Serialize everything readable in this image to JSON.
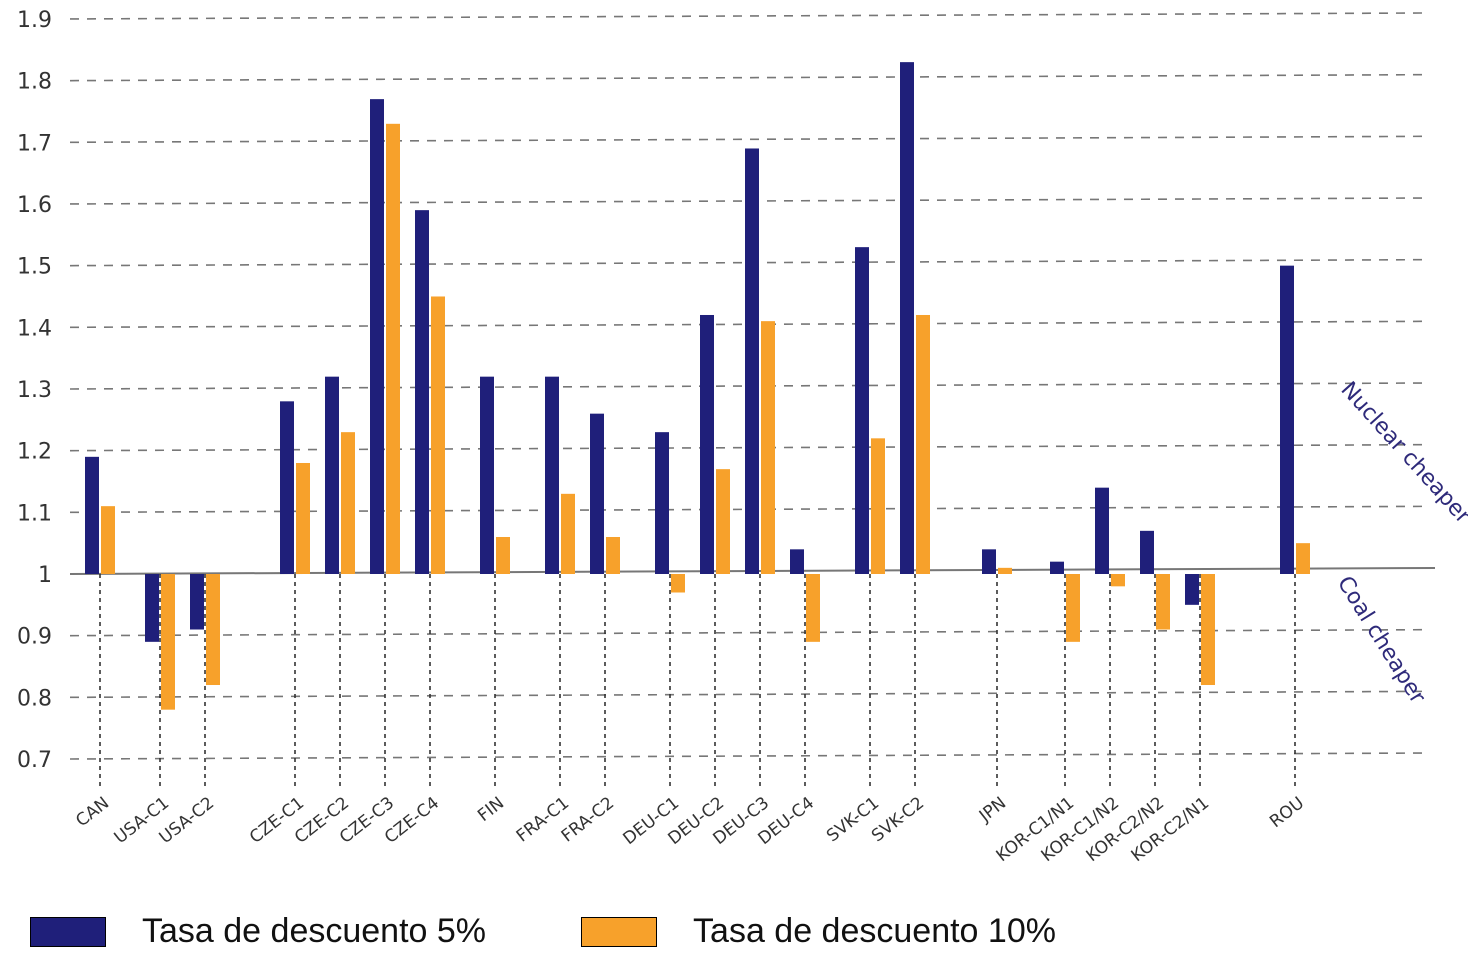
{
  "chart_data": {
    "type": "bar",
    "categories": [
      "CAN",
      "USA-C1",
      "USA-C2",
      "CZE-C1",
      "CZE-C2",
      "CZE-C3",
      "CZE-C4",
      "FIN",
      "FRA-C1",
      "FRA-C2",
      "DEU-C1",
      "DEU-C2",
      "DEU-C3",
      "DEU-C4",
      "SVK-C1",
      "SVK-C2",
      "JPN",
      "KOR-C1/N1",
      "KOR-C1/N2",
      "KOR-C2/N2",
      "KOR-C2/N1",
      "ROU"
    ],
    "series": [
      {
        "name": "Tasa de descuento 5%",
        "color": "#1f1f7a",
        "values": [
          1.19,
          0.89,
          0.91,
          1.28,
          1.32,
          1.77,
          1.59,
          1.32,
          1.32,
          1.26,
          1.23,
          1.42,
          1.69,
          1.04,
          1.53,
          1.83,
          1.04,
          1.02,
          1.14,
          1.07,
          0.95,
          1.5
        ]
      },
      {
        "name": "Tasa de descuento 10%",
        "color": "#f7a12b",
        "values": [
          1.11,
          0.78,
          0.82,
          1.18,
          1.23,
          1.73,
          1.45,
          1.06,
          1.13,
          1.06,
          0.97,
          1.17,
          1.41,
          0.89,
          1.22,
          1.42,
          1.01,
          0.89,
          0.98,
          0.91,
          0.82,
          1.05
        ]
      }
    ],
    "yticks": [
      "1.9",
      "1.8",
      "1.7",
      "1.6",
      "1.5",
      "1.4",
      "1.3",
      "1.2",
      "1.1",
      "1",
      "0.9",
      "0.8",
      "0.7"
    ],
    "ylim": [
      0.65,
      1.92
    ],
    "baseline": 1,
    "grid": true,
    "annotations": {
      "above": "Nuclear cheaper",
      "below": "Coal cheaper"
    },
    "legend_position": "bottom"
  },
  "legend": {
    "item1": "Tasa de descuento 5%",
    "item2": "Tasa de descuento 10%"
  }
}
